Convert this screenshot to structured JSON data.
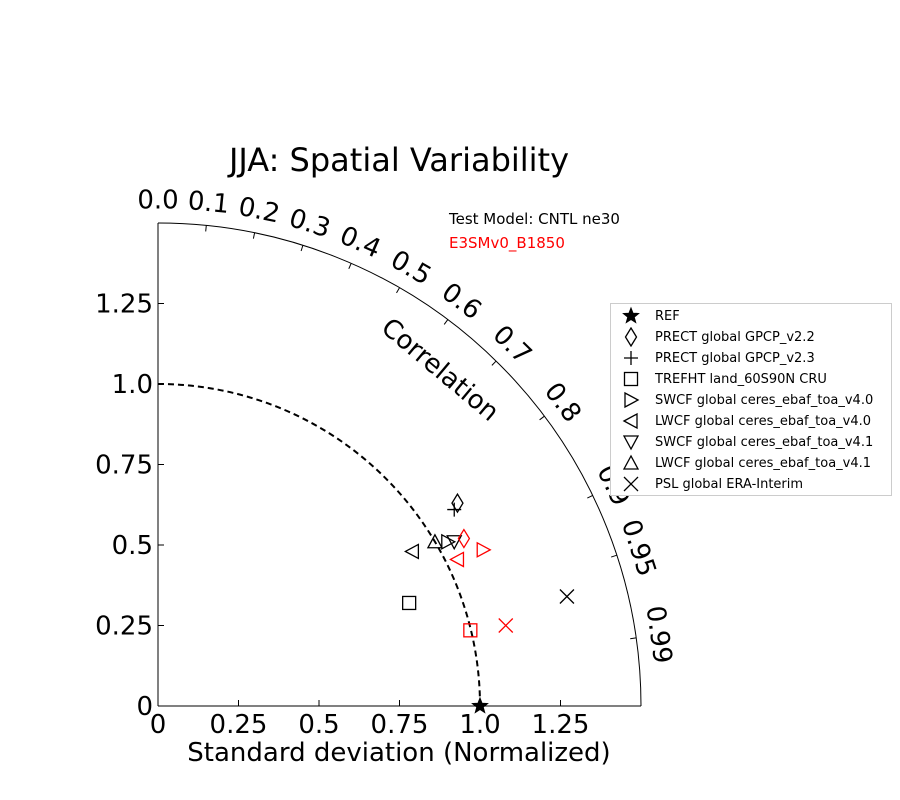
{
  "chart_data": {
    "type": "taylor-diagram",
    "title": "JJA: Spatial Variability",
    "xlabel": "Standard deviation (Normalized)",
    "axis_label_curve": "Correlation",
    "std_max": 1.5,
    "std_ticks": [
      0,
      0.25,
      0.5,
      0.75,
      1.0,
      1.25
    ],
    "std_tick_labels": [
      "0",
      "0.25",
      "0.5",
      "0.75",
      "1.0",
      "1.25"
    ],
    "ref_std": 1.0,
    "correlation_ticks": [
      0.0,
      0.1,
      0.2,
      0.3,
      0.4,
      0.5,
      0.6,
      0.7,
      0.8,
      0.9,
      0.95,
      0.99
    ],
    "correlation_tick_labels": [
      "0.0",
      "0.1",
      "0.2",
      "0.3",
      "0.4",
      "0.5",
      "0.6",
      "0.7",
      "0.8",
      "0.9",
      "0.95",
      "0.99"
    ],
    "test_model_label": "Test Model: CNTL ne30",
    "reference_model_label": "E3SMv0_B1850",
    "colors": {
      "test": "#000000",
      "reference": "#ff0000"
    },
    "legend": [
      {
        "marker": "star",
        "label": "REF"
      },
      {
        "marker": "diamond",
        "label": "PRECT global GPCP_v2.2"
      },
      {
        "marker": "plus",
        "label": "PRECT global GPCP_v2.3"
      },
      {
        "marker": "square",
        "label": "TREFHT land_60S90N CRU"
      },
      {
        "marker": "triangle-right",
        "label": "SWCF global ceres_ebaf_toa_v4.0"
      },
      {
        "marker": "triangle-left",
        "label": "LWCF global ceres_ebaf_toa_v4.0"
      },
      {
        "marker": "triangle-down",
        "label": "SWCF global ceres_ebaf_toa_v4.1"
      },
      {
        "marker": "triangle-up",
        "label": "LWCF global ceres_ebaf_toa_v4.1"
      },
      {
        "marker": "x",
        "label": "PSL global ERA-Interim"
      }
    ],
    "points": [
      {
        "name": "REF",
        "marker": "star",
        "model": "ref",
        "x": 1.0,
        "y": 0.0
      },
      {
        "name": "PRECT global GPCP_v2.2",
        "marker": "diamond",
        "model": "test",
        "x": 0.93,
        "y": 0.63
      },
      {
        "name": "PRECT global GPCP_v2.3",
        "marker": "plus",
        "model": "test",
        "x": 0.92,
        "y": 0.61
      },
      {
        "name": "TREFHT land_60S90N CRU",
        "marker": "square",
        "model": "test",
        "x": 0.78,
        "y": 0.32
      },
      {
        "name": "SWCF global ceres_ebaf_toa_v4.0",
        "marker": "triangle-right",
        "model": "test",
        "x": 0.9,
        "y": 0.51
      },
      {
        "name": "LWCF global ceres_ebaf_toa_v4.0",
        "marker": "triangle-left",
        "model": "test",
        "x": 0.79,
        "y": 0.48
      },
      {
        "name": "SWCF global ceres_ebaf_toa_v4.1",
        "marker": "triangle-down",
        "model": "test",
        "x": 0.92,
        "y": 0.51
      },
      {
        "name": "LWCF global ceres_ebaf_toa_v4.1",
        "marker": "triangle-up",
        "model": "test",
        "x": 0.86,
        "y": 0.51
      },
      {
        "name": "PSL global ERA-Interim",
        "marker": "x",
        "model": "test",
        "x": 1.27,
        "y": 0.34
      },
      {
        "name": "PRECT global GPCP_v2.2",
        "marker": "diamond",
        "model": "reference",
        "x": 0.95,
        "y": 0.52
      },
      {
        "name": "TREFHT land_60S90N CRU",
        "marker": "square",
        "model": "reference",
        "x": 0.97,
        "y": 0.235
      },
      {
        "name": "SWCF global ceres_ebaf_toa_v4.0",
        "marker": "triangle-right",
        "model": "reference",
        "x": 1.01,
        "y": 0.485
      },
      {
        "name": "LWCF global ceres_ebaf_toa_v4.0",
        "marker": "triangle-left",
        "model": "reference",
        "x": 0.93,
        "y": 0.455
      },
      {
        "name": "PSL global ERA-Interim",
        "marker": "x",
        "model": "reference",
        "x": 1.08,
        "y": 0.25
      }
    ]
  }
}
